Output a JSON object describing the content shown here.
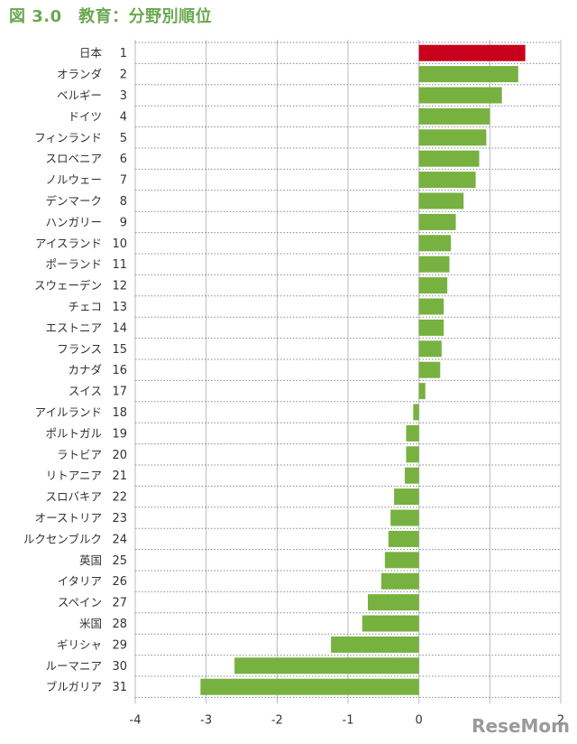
{
  "title": "図 3.0　教育：分野別順位",
  "watermark": "ReseMom",
  "colors": {
    "highlight": "#c8001e",
    "bar": "#77b140",
    "grid": "#bbbbbb"
  },
  "chart_data": {
    "type": "bar",
    "orientation": "horizontal",
    "title": "図 3.0　教育：分野別順位",
    "xlabel": "",
    "ylabel": "",
    "xlim": [
      -4,
      2
    ],
    "xticks": [
      -4,
      -3,
      -2,
      -1,
      0,
      2
    ],
    "grid": true,
    "categories": [
      "日本",
      "オランダ",
      "ベルギー",
      "ドイツ",
      "フィンランド",
      "スロベニア",
      "ノルウェー",
      "デンマーク",
      "ハンガリー",
      "アイスランド",
      "ポーランド",
      "スウェーデン",
      "チェコ",
      "エストニア",
      "フランス",
      "カナダ",
      "スイス",
      "アイルランド",
      "ポルトガル",
      "ラトビア",
      "リトアニア",
      "スロバキア",
      "オーストリア",
      "ルクセンブルク",
      "英国",
      "イタリア",
      "スペイン",
      "米国",
      "ギリシャ",
      "ルーマニア",
      "ブルガリア"
    ],
    "ranks": [
      "1",
      "2",
      "3",
      "4",
      "5",
      "6",
      "7",
      "8",
      "9",
      "10",
      "11",
      "12",
      "13",
      "14",
      "15",
      "16",
      "17",
      "18",
      "19",
      "20",
      "21",
      "22",
      "23",
      "24",
      "25",
      "26",
      "27",
      "28",
      "29",
      "30",
      "31"
    ],
    "values": [
      1.5,
      1.4,
      1.17,
      1.0,
      0.95,
      0.85,
      0.8,
      0.63,
      0.52,
      0.45,
      0.43,
      0.4,
      0.35,
      0.35,
      0.32,
      0.3,
      0.09,
      -0.08,
      -0.18,
      -0.18,
      -0.2,
      -0.35,
      -0.4,
      -0.43,
      -0.48,
      -0.53,
      -0.72,
      -0.8,
      -1.24,
      -2.6,
      -3.08
    ],
    "highlight_index": 0
  }
}
